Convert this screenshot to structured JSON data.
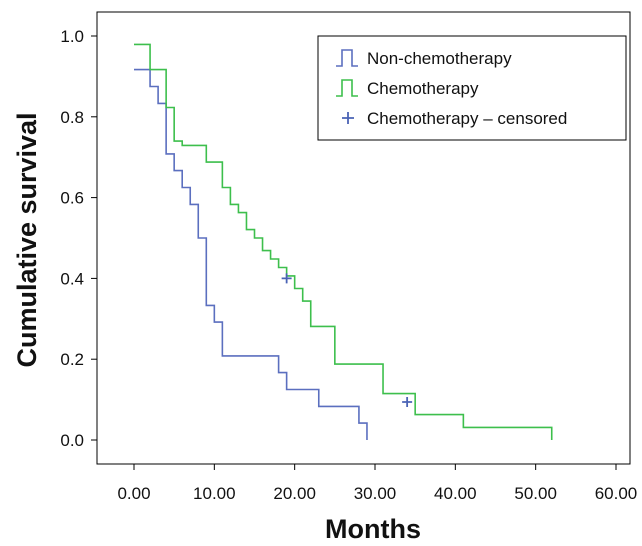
{
  "chart_data": {
    "type": "line",
    "step": true,
    "xlabel": "Months",
    "ylabel": "Cumulative survival",
    "xlim": [
      0,
      60
    ],
    "ylim": [
      0,
      1.0
    ],
    "x_ticks": [
      "0.00",
      "10.00",
      "20.00",
      "30.00",
      "40.00",
      "50.00",
      "60.00"
    ],
    "y_ticks": [
      "0.0",
      "0.2",
      "0.4",
      "0.6",
      "0.8",
      "1.0"
    ],
    "grid": false,
    "legend_position": "top-right",
    "legend": [
      {
        "label": "Non-chemotherapy",
        "symbol": "step",
        "color": "#5b6fbf"
      },
      {
        "label": "Chemotherapy",
        "symbol": "step",
        "color": "#3dbf4c"
      },
      {
        "label": "Chemotherapy – censored",
        "symbol": "plus",
        "color": "#4a63b5"
      }
    ],
    "series": [
      {
        "name": "Non-chemotherapy",
        "color": "#5b6fbf",
        "x": [
          0,
          1.5,
          2,
          3,
          4,
          5,
          6,
          7,
          8,
          9,
          10,
          11,
          18,
          19,
          23,
          28,
          29
        ],
        "y": [
          0.917,
          0.917,
          0.875,
          0.833,
          0.708,
          0.667,
          0.625,
          0.583,
          0.5,
          0.333,
          0.292,
          0.208,
          0.167,
          0.125,
          0.083,
          0.042,
          0.0
        ]
      },
      {
        "name": "Chemotherapy",
        "color": "#3dbf4c",
        "x": [
          0,
          1.5,
          2,
          4,
          5,
          6,
          9,
          11,
          12,
          13,
          14,
          15,
          16,
          17,
          18,
          19,
          20,
          21,
          22,
          25,
          31,
          35,
          41,
          52
        ],
        "y": [
          0.979,
          0.979,
          0.917,
          0.823,
          0.74,
          0.729,
          0.688,
          0.625,
          0.583,
          0.563,
          0.521,
          0.5,
          0.469,
          0.448,
          0.427,
          0.406,
          0.375,
          0.344,
          0.281,
          0.188,
          0.115,
          0.063,
          0.031,
          0.0
        ]
      }
    ],
    "censored": {
      "name": "Chemotherapy – censored",
      "color": "#4a63b5",
      "points": [
        {
          "x": 19,
          "y": 0.4
        },
        {
          "x": 34,
          "y": 0.094
        }
      ]
    }
  }
}
